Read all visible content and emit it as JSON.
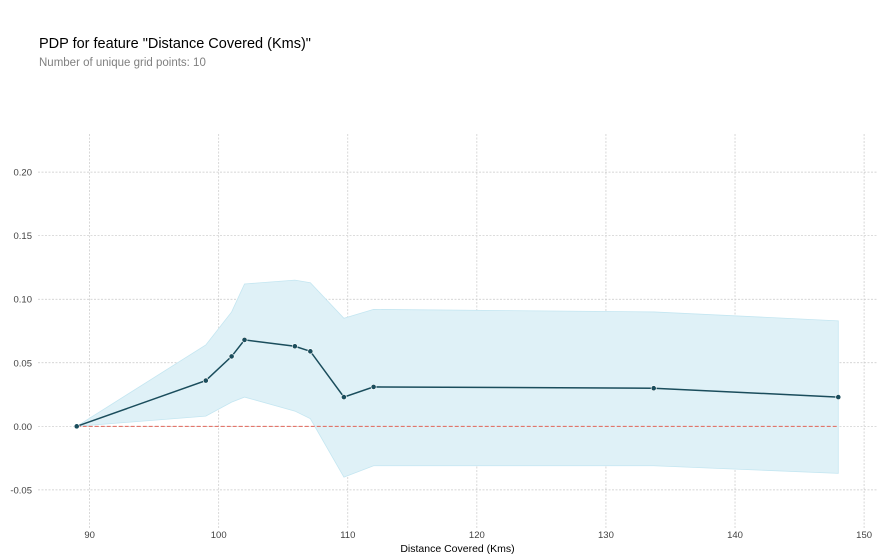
{
  "chart_data": {
    "type": "line",
    "title": "PDP for feature \"Distance Covered (Kms)\"",
    "subtitle": "Number of unique grid points: 10",
    "xlabel": "Distance Covered (Kms)",
    "ylabel": "",
    "xlim": [
      86,
      151
    ],
    "ylim": [
      -0.08,
      0.23
    ],
    "x_ticks": [
      90,
      100,
      110,
      120,
      130,
      140,
      150
    ],
    "y_ticks": [
      -0.05,
      0.0,
      0.05,
      0.1,
      0.15,
      0.2
    ],
    "y_tick_labels": [
      "-0.05",
      "0.00",
      "0.05",
      "0.10",
      "0.15",
      "0.20"
    ],
    "grid": true,
    "series": [
      {
        "x": [
          89,
          99,
          101,
          102,
          105.9,
          107.1,
          109.7,
          112,
          133.7,
          148
        ],
        "values": [
          0.0,
          0.036,
          0.055,
          0.068,
          0.063,
          0.059,
          0.023,
          0.031,
          0.03,
          0.023
        ],
        "upper": [
          0.0,
          0.064,
          0.09,
          0.112,
          0.115,
          0.113,
          0.085,
          0.092,
          0.09,
          0.083
        ],
        "lower": [
          0.0,
          0.008,
          0.019,
          0.023,
          0.012,
          0.006,
          -0.04,
          -0.031,
          -0.031,
          -0.037
        ]
      }
    ],
    "reference_line": {
      "y": 0.0
    },
    "colors": {
      "line": "#1a4d5c",
      "band": "#dff1f7",
      "band_edge": "#c4e6f1",
      "reference": "#e06659",
      "grid": "#c8c8c8"
    }
  }
}
